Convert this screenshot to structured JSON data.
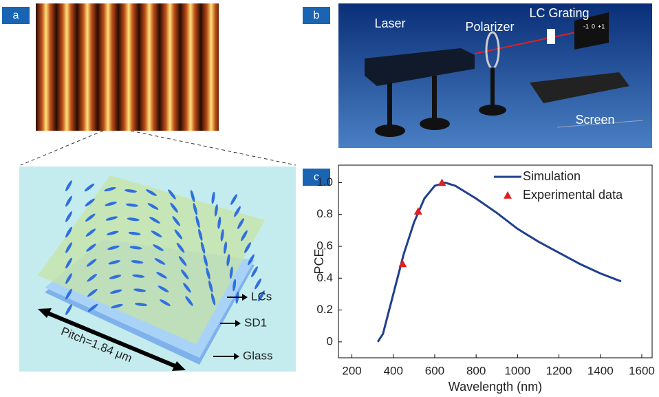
{
  "panels": {
    "a": {
      "label": "a",
      "annotations": {
        "lcs": "LCs",
        "sd1": "SD1",
        "glass": "Glass",
        "pitch": "Pitch=1.84 μm"
      }
    },
    "b": {
      "label": "b",
      "annotations": {
        "laser": "Laser",
        "polarizer": "Polarizer",
        "lc_grating": "LC Grating",
        "screen": "Screen",
        "order_minus1": "-1",
        "order_0": "0",
        "order_plus1": "+1"
      }
    },
    "c": {
      "label": "c"
    }
  },
  "chart_data": {
    "type": "line",
    "x_label": "Wavelength (nm)",
    "y_label": "PCE",
    "xlim": [
      135,
      1650
    ],
    "ylim": [
      -0.1,
      1.11
    ],
    "xticks": [
      200,
      400,
      600,
      800,
      1000,
      1200,
      1400,
      1600
    ],
    "yticks": [
      0,
      0.2,
      0.4,
      0.6,
      0.8,
      {
        "value": 1,
        "label": "1.0"
      }
    ],
    "legend": "upper-right",
    "series": [
      {
        "name": "Simulation",
        "color": "#1f3f8f",
        "mode": "line",
        "x": [
          325,
          350,
          400,
          450,
          500,
          550,
          600,
          650,
          700,
          800,
          900,
          1000,
          1100,
          1200,
          1300,
          1400,
          1500
        ],
        "values": [
          0,
          0.05,
          0.3,
          0.55,
          0.75,
          0.9,
          0.98,
          1.0,
          0.98,
          0.9,
          0.81,
          0.71,
          0.63,
          0.56,
          0.49,
          0.43,
          0.38
        ]
      },
      {
        "name": "Experimental data",
        "color": "#e02020",
        "mode": "triangle",
        "x": [
          445,
          520,
          635
        ],
        "values": [
          0.49,
          0.82,
          1.0
        ]
      }
    ]
  }
}
